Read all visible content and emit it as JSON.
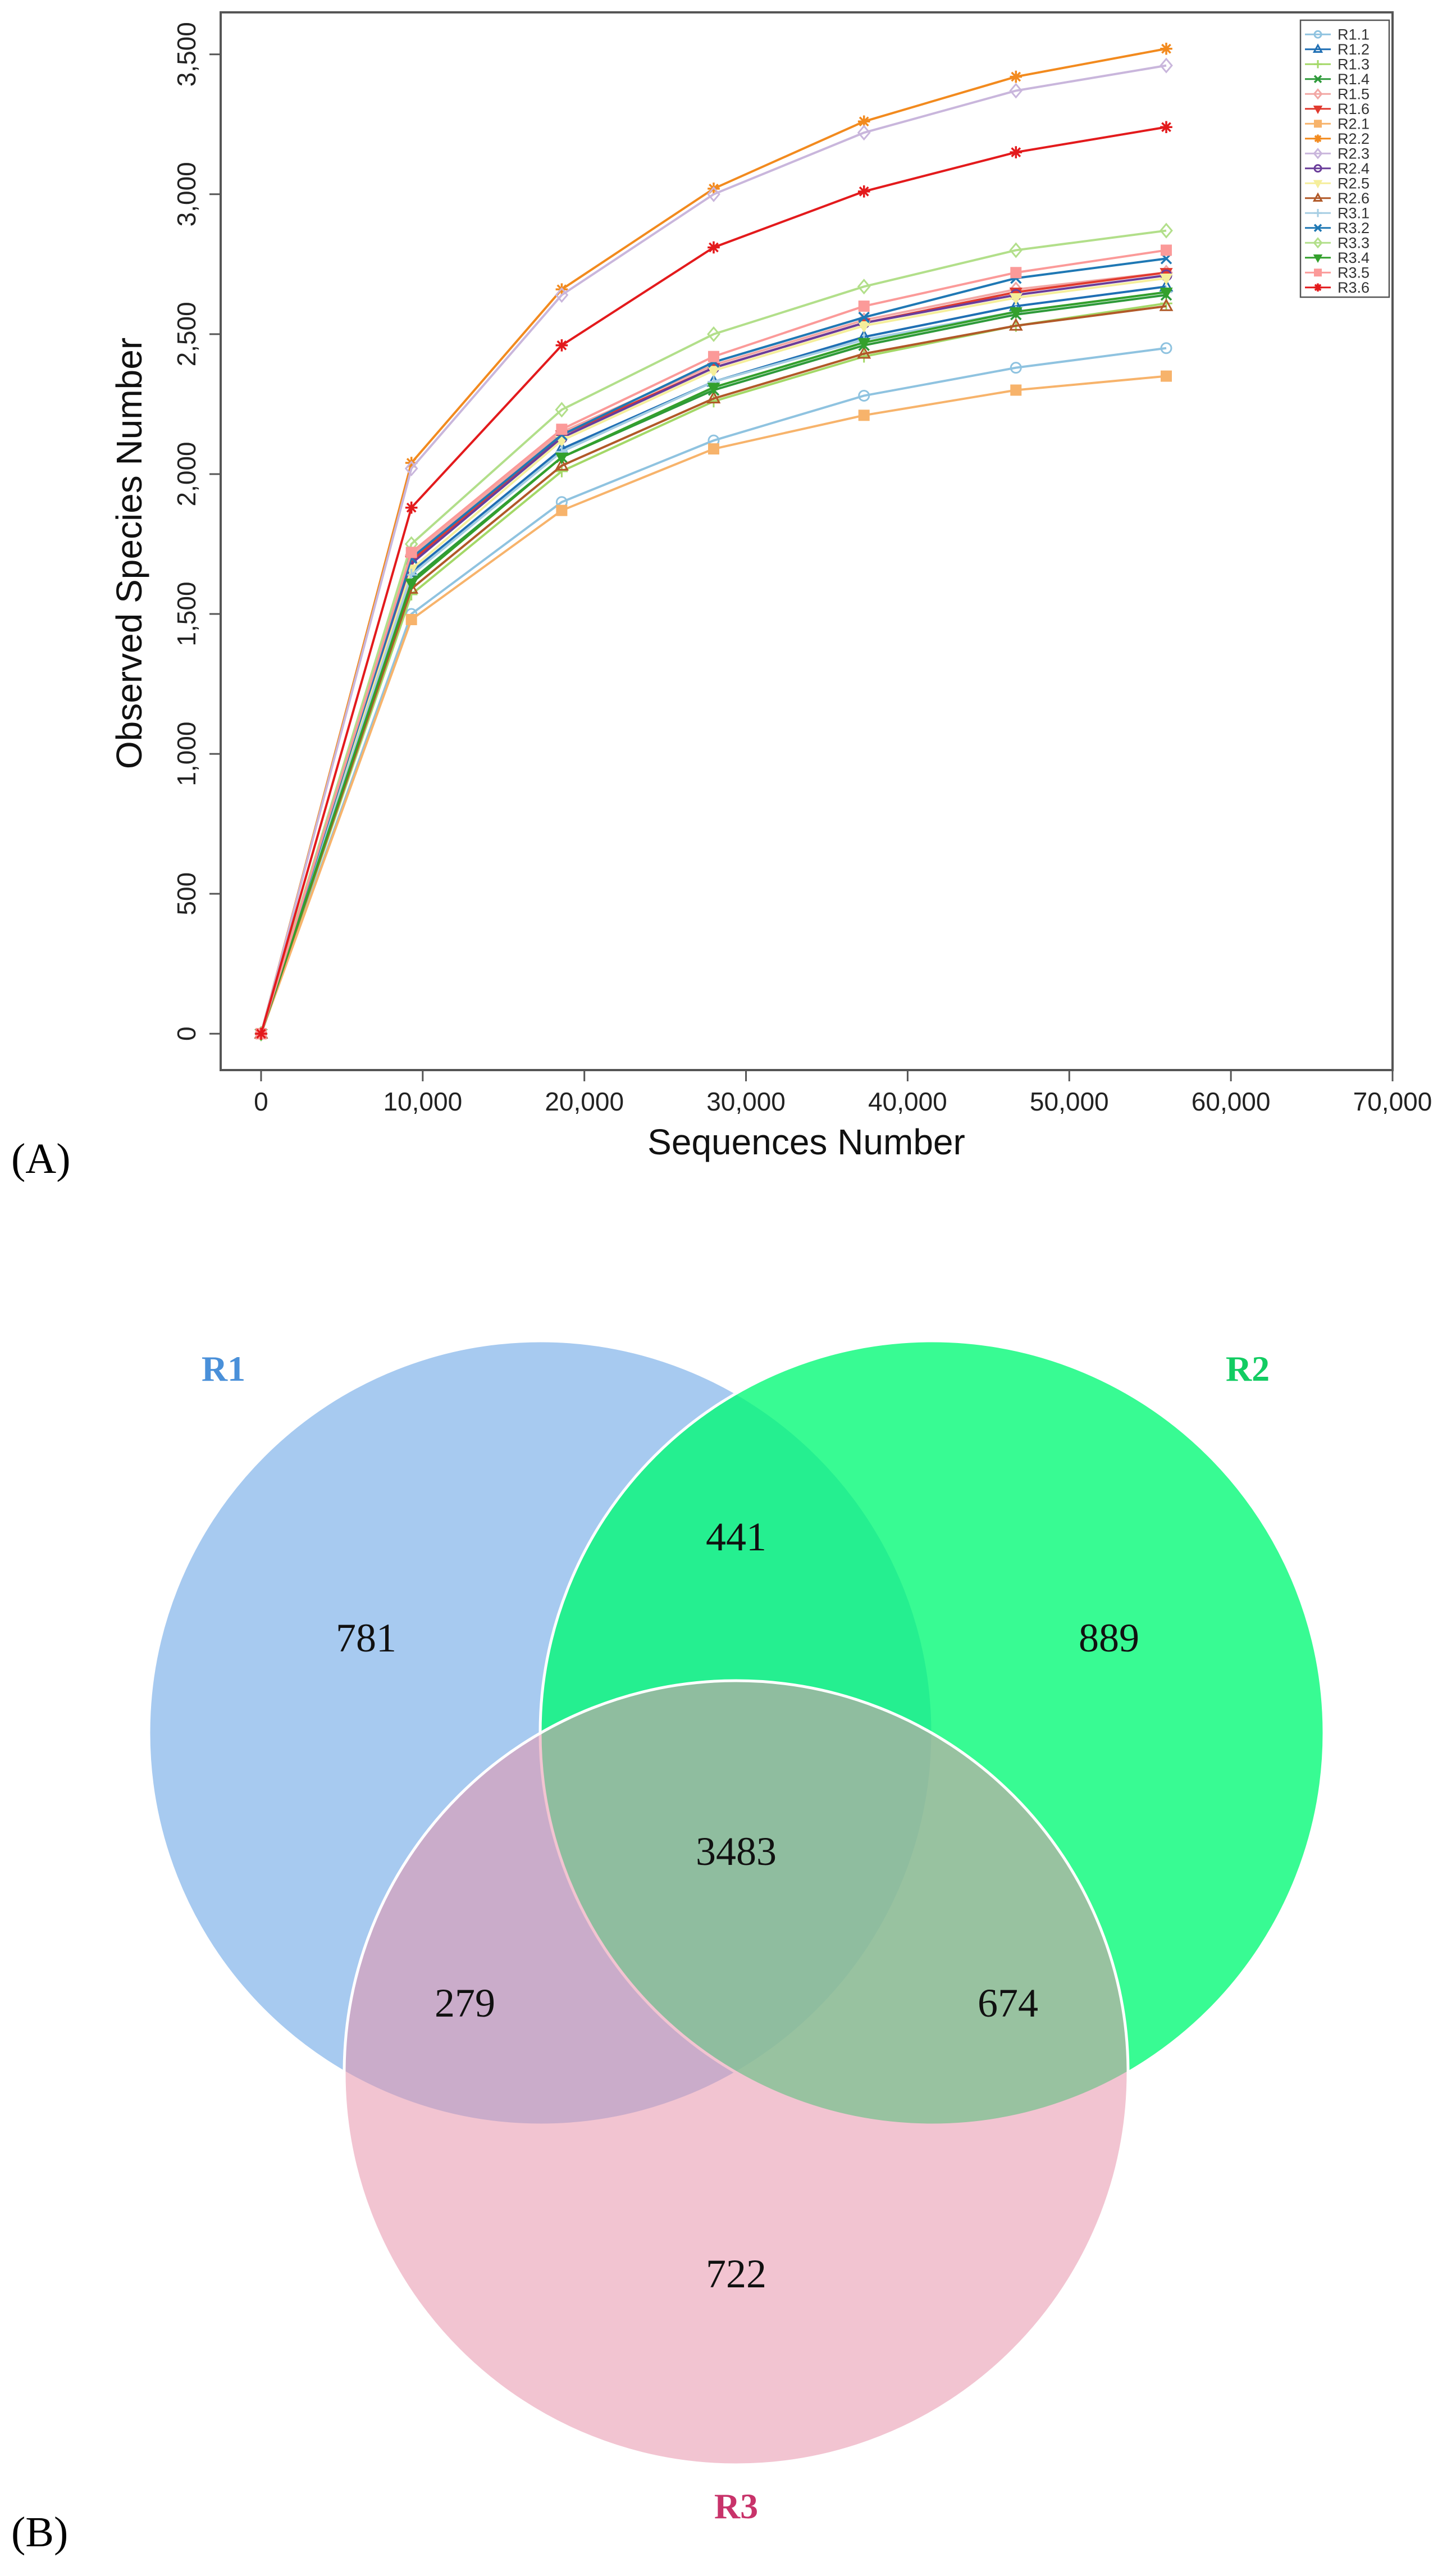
{
  "chart_data": [
    {
      "type": "line",
      "panel": "(A)",
      "xlabel": "Sequences Number",
      "ylabel": "Observed Species Number",
      "xlim": [
        -2500,
        70000
      ],
      "ylim": [
        -130,
        3650
      ],
      "x_ticks": [
        0,
        10000,
        20000,
        30000,
        40000,
        50000,
        60000,
        70000
      ],
      "x_tick_labels": [
        "0",
        "10,000",
        "20,000",
        "30,000",
        "40,000",
        "50,000",
        "60,000",
        "70,000"
      ],
      "y_ticks": [
        0,
        500,
        1000,
        1500,
        2000,
        2500,
        3000,
        3500
      ],
      "y_tick_labels": [
        "0",
        "500",
        "1,000",
        "1,500",
        "2,000",
        "2,500",
        "3,000",
        "3,500"
      ],
      "legend_position": "top-right",
      "x": [
        0,
        9300,
        18600,
        28000,
        37300,
        46700,
        56000
      ],
      "series": [
        {
          "name": "R1.1",
          "color": "#8fc3e0",
          "marker": "circle",
          "values": [
            0,
            1500,
            1900,
            2120,
            2280,
            2380,
            2450
          ]
        },
        {
          "name": "R1.2",
          "color": "#1f6fb4",
          "marker": "triangle",
          "values": [
            0,
            1650,
            2090,
            2330,
            2490,
            2600,
            2670
          ]
        },
        {
          "name": "R1.3",
          "color": "#a3d867",
          "marker": "plus",
          "values": [
            0,
            1570,
            2010,
            2260,
            2420,
            2530,
            2610
          ]
        },
        {
          "name": "R1.4",
          "color": "#2e9a3a",
          "marker": "x",
          "values": [
            0,
            1620,
            2060,
            2300,
            2460,
            2570,
            2640
          ]
        },
        {
          "name": "R1.5",
          "color": "#f2a7a4",
          "marker": "diamond",
          "values": [
            0,
            1710,
            2150,
            2390,
            2550,
            2660,
            2720
          ]
        },
        {
          "name": "R1.6",
          "color": "#e03a2f",
          "marker": "triangle-down",
          "values": [
            0,
            1690,
            2140,
            2380,
            2540,
            2650,
            2720
          ]
        },
        {
          "name": "R2.1",
          "color": "#f7b36b",
          "marker": "square",
          "values": [
            0,
            1480,
            1870,
            2090,
            2210,
            2300,
            2350
          ]
        },
        {
          "name": "R2.2",
          "color": "#f28a1e",
          "marker": "star",
          "values": [
            0,
            2040,
            2660,
            3020,
            3260,
            3420,
            3520
          ]
        },
        {
          "name": "R2.3",
          "color": "#c9b6dc",
          "marker": "diamond",
          "values": [
            0,
            2020,
            2640,
            3000,
            3220,
            3370,
            3460
          ]
        },
        {
          "name": "R2.4",
          "color": "#6a3d9a",
          "marker": "circle",
          "values": [
            0,
            1680,
            2130,
            2380,
            2540,
            2640,
            2710
          ]
        },
        {
          "name": "R2.5",
          "color": "#f5ee9b",
          "marker": "triangle-down",
          "values": [
            0,
            1660,
            2120,
            2370,
            2530,
            2630,
            2700
          ]
        },
        {
          "name": "R2.6",
          "color": "#b15928",
          "marker": "triangle",
          "values": [
            0,
            1590,
            2030,
            2270,
            2430,
            2530,
            2600
          ]
        },
        {
          "name": "R3.1",
          "color": "#a6cee3",
          "marker": "plus",
          "values": [
            0,
            1640,
            2080,
            2330,
            2480,
            2580,
            2650
          ]
        },
        {
          "name": "R3.2",
          "color": "#1f78b4",
          "marker": "x",
          "values": [
            0,
            1700,
            2140,
            2400,
            2560,
            2700,
            2770
          ]
        },
        {
          "name": "R3.3",
          "color": "#b2df8a",
          "marker": "diamond",
          "values": [
            0,
            1750,
            2230,
            2500,
            2670,
            2800,
            2870
          ]
        },
        {
          "name": "R3.4",
          "color": "#33a02c",
          "marker": "triangle-down",
          "values": [
            0,
            1610,
            2060,
            2310,
            2470,
            2580,
            2650
          ]
        },
        {
          "name": "R3.5",
          "color": "#fb9a99",
          "marker": "square",
          "values": [
            0,
            1720,
            2160,
            2420,
            2600,
            2720,
            2800
          ]
        },
        {
          "name": "R3.6",
          "color": "#e31a1c",
          "marker": "star",
          "values": [
            0,
            1880,
            2460,
            2810,
            3010,
            3150,
            3240
          ]
        }
      ]
    },
    {
      "type": "venn",
      "panel": "(B)",
      "sets": [
        {
          "name": "R1",
          "color": "#a4c8f0",
          "label_color": "#4a90d9"
        },
        {
          "name": "R2",
          "color": "#00fa75",
          "label_color": "#12cc62"
        },
        {
          "name": "R3",
          "color": "#e793ab",
          "label_color": "#c8336a"
        }
      ],
      "regions": {
        "R1_only": 781,
        "R2_only": 889,
        "R3_only": 722,
        "R1_R2": 441,
        "R1_R3": 279,
        "R2_R3": 674,
        "R1_R2_R3": 3483
      }
    }
  ],
  "panel_labels": {
    "a": "(A)",
    "b": "(B)"
  }
}
